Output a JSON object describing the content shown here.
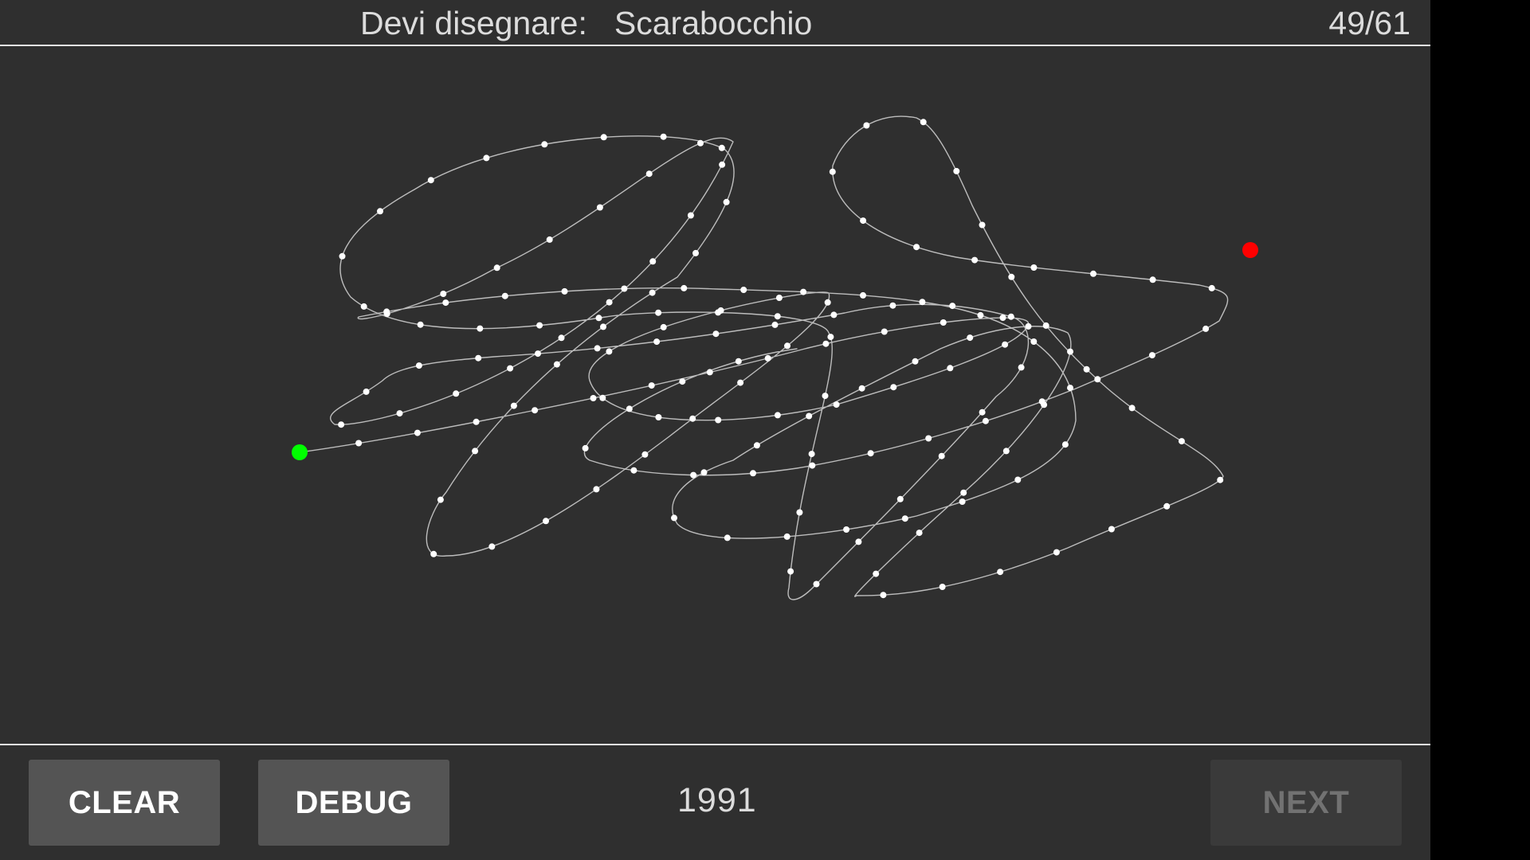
{
  "header": {
    "prompt_label": "Devi disegnare:",
    "target_word": "Scarabocchio",
    "counter": "49/61"
  },
  "footer": {
    "clear_label": "CLEAR",
    "debug_label": "DEBUG",
    "score": "1991",
    "next_label": "NEXT"
  },
  "colors": {
    "background": "#2f2f2f",
    "stroke": "#bdbdbd",
    "sample_point": "#ffffff",
    "start_point": "#00ff00",
    "end_point": "#ff0000",
    "button": "#545454",
    "button_disabled": "#3a3a3a"
  },
  "next_enabled": false
}
